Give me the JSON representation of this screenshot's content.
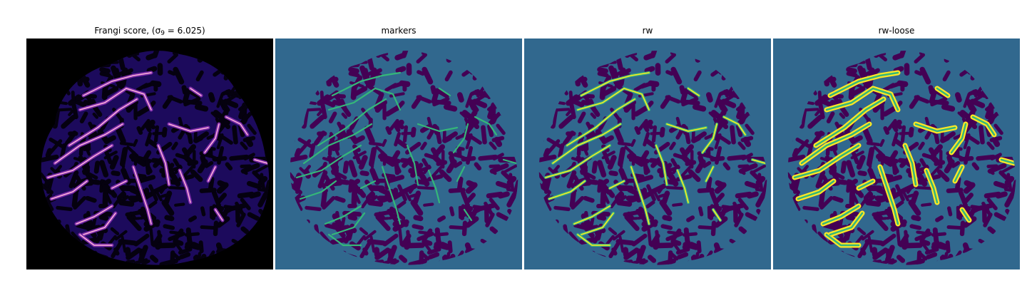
{
  "panels": [
    {
      "title": "Frangi score, ",
      "title_math_open": "(σ",
      "title_math_sub": "9",
      "title_math_rest": " = 6.025)",
      "kind": "frangi"
    },
    {
      "title": "markers",
      "kind": "markers"
    },
    {
      "title": "rw",
      "kind": "rw"
    },
    {
      "title": "rw-loose",
      "kind": "rwloose"
    }
  ],
  "colors": {
    "background_black": "#000000",
    "frangi_low": "#1c0a5c",
    "frangi_mid": "#7a2aa8",
    "frangi_high": "#ffb3d9",
    "label_background": "#31688e",
    "label_tissue": "#440154",
    "label_marker": "#35b779",
    "label_vessel": "#fde725"
  }
}
